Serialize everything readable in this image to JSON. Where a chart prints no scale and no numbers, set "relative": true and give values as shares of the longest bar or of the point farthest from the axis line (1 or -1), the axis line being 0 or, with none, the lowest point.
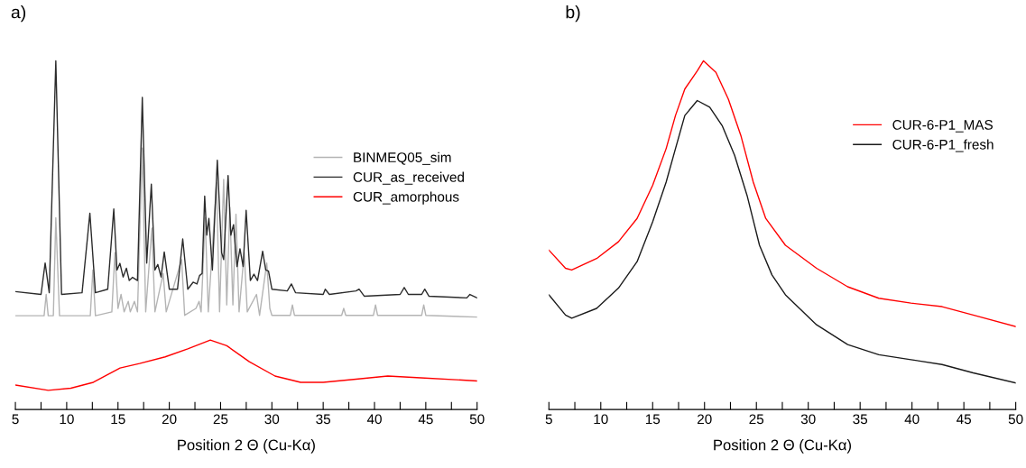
{
  "chart_data": [
    {
      "type": "line",
      "title": "a)",
      "xlabel": "Position 2 Θ (Cu-Kα)",
      "relative": true,
      "tick_labels": "x",
      "legend": "right",
      "grid": false,
      "marker": "none",
      "line_style": "solid",
      "xlim": [
        5,
        50
      ],
      "xticks": [
        5,
        {
          "value": 7.5,
          "label": null
        },
        10,
        {
          "value": 12.5,
          "label": null
        },
        15,
        {
          "value": 17.5,
          "label": null
        },
        20,
        {
          "value": 22.5,
          "label": null
        },
        25,
        {
          "value": 27.5,
          "label": null
        },
        30,
        {
          "value": 32.5,
          "label": null
        },
        35,
        {
          "value": 37.5,
          "label": null
        },
        40,
        {
          "value": 42.5,
          "label": null
        },
        45,
        {
          "value": 47.5,
          "label": null
        },
        50
      ],
      "series": [
        {
          "name": "BINMEQ05_sim",
          "color": "#b4b4b4",
          "x": [
            5,
            7.8,
            8.0,
            8.2,
            8.7,
            8.94,
            9.3,
            12.3,
            12.55,
            12.8,
            14.4,
            14.7,
            15.0,
            15.3,
            15.6,
            16.0,
            16.2,
            16.6,
            16.9,
            17.37,
            17.7,
            18.3,
            18.6,
            19.4,
            19.7,
            21.2,
            21.5,
            22.6,
            22.9,
            23.1,
            23.5,
            23.8,
            24.6,
            24.9,
            25.3,
            25.6,
            25.9,
            26.2,
            26.5,
            26.8,
            27.3,
            27.6,
            28.5,
            28.8,
            29.5,
            29.8,
            30.0,
            31.8,
            32.0,
            32.2,
            36.8,
            37.0,
            37.2,
            39.9,
            40.1,
            40.3,
            44.6,
            44.8,
            45.0,
            50
          ],
          "values": [
            0.269,
            0.269,
            0.33,
            0.269,
            0.269,
            0.55,
            0.269,
            0.269,
            0.4,
            0.269,
            0.28,
            0.45,
            0.29,
            0.33,
            0.28,
            0.31,
            0.28,
            0.31,
            0.28,
            0.75,
            0.28,
            0.52,
            0.28,
            0.39,
            0.28,
            0.43,
            0.27,
            0.29,
            0.31,
            0.28,
            0.55,
            0.28,
            0.65,
            0.28,
            0.66,
            0.3,
            0.58,
            0.3,
            0.56,
            0.28,
            0.45,
            0.28,
            0.33,
            0.27,
            0.42,
            0.29,
            0.27,
            0.27,
            0.3,
            0.27,
            0.27,
            0.29,
            0.27,
            0.27,
            0.3,
            0.27,
            0.27,
            0.3,
            0.27,
            0.265
          ]
        },
        {
          "name": "CUR_as_received",
          "color": "#2b2b2b",
          "x": [
            5,
            7.5,
            7.9,
            8.3,
            8.94,
            9.5,
            11.5,
            12.26,
            12.8,
            14.0,
            14.59,
            14.9,
            15.19,
            15.5,
            15.82,
            16.1,
            16.42,
            16.9,
            17.37,
            17.8,
            18.25,
            18.6,
            18.88,
            19.2,
            19.51,
            20.0,
            20.8,
            21.31,
            21.8,
            22.32,
            22.7,
            22.95,
            23.2,
            23.45,
            23.65,
            23.86,
            24.2,
            24.68,
            25.1,
            25.3,
            25.73,
            26.0,
            26.26,
            26.6,
            26.89,
            27.2,
            27.49,
            27.9,
            28.25,
            28.6,
            29.1,
            29.4,
            29.67,
            30.0,
            31.5,
            31.9,
            32.3,
            35,
            35.2,
            35.6,
            38.2,
            38.5,
            39,
            42.5,
            42.9,
            43.3,
            44.6,
            44.9,
            45.3,
            49,
            49.3,
            50
          ],
          "values": [
            0.338,
            0.33,
            0.42,
            0.335,
            1.0,
            0.33,
            0.335,
            0.563,
            0.335,
            0.345,
            0.575,
            0.4,
            0.419,
            0.38,
            0.405,
            0.37,
            0.379,
            0.37,
            0.895,
            0.42,
            0.646,
            0.4,
            0.416,
            0.38,
            0.452,
            0.345,
            0.345,
            0.489,
            0.345,
            0.365,
            0.36,
            0.384,
            0.39,
            0.612,
            0.5,
            0.548,
            0.4,
            0.715,
            0.45,
            0.43,
            0.671,
            0.5,
            0.53,
            0.41,
            0.461,
            0.41,
            0.571,
            0.37,
            0.388,
            0.37,
            0.454,
            0.4,
            0.397,
            0.345,
            0.34,
            0.36,
            0.335,
            0.33,
            0.345,
            0.33,
            0.34,
            0.345,
            0.325,
            0.33,
            0.35,
            0.33,
            0.33,
            0.345,
            0.325,
            0.32,
            0.33,
            0.32
          ]
        },
        {
          "name": "CUR_amorphous",
          "color": "#ff0000",
          "x": [
            5,
            8.2,
            10.4,
            12.6,
            15.2,
            17.1,
            19.6,
            21.8,
            24.0,
            25.6,
            27.8,
            30.3,
            32.8,
            35.0,
            38.2,
            41.3,
            44.5,
            50
          ],
          "values": [
            0.07,
            0.055,
            0.061,
            0.078,
            0.119,
            0.132,
            0.151,
            0.174,
            0.199,
            0.183,
            0.137,
            0.096,
            0.078,
            0.078,
            0.087,
            0.096,
            0.091,
            0.082
          ]
        }
      ]
    },
    {
      "type": "line",
      "title": "b)",
      "xlabel": "Position 2 Θ (Cu-Kα)",
      "relative": true,
      "tick_labels": "x",
      "legend": "top right",
      "grid": false,
      "marker": "none",
      "line_style": "solid",
      "xlim": [
        5,
        50
      ],
      "xticks": [
        5,
        {
          "value": 7.5,
          "label": null
        },
        10,
        {
          "value": 12.5,
          "label": null
        },
        15,
        {
          "value": 17.5,
          "label": null
        },
        20,
        {
          "value": 22.5,
          "label": null
        },
        25,
        {
          "value": 27.5,
          "label": null
        },
        30,
        {
          "value": 32.5,
          "label": null
        },
        35,
        {
          "value": 37.5,
          "label": null
        },
        40,
        {
          "value": 42.5,
          "label": null
        },
        45,
        {
          "value": 47.5,
          "label": null
        },
        50
      ],
      "series": [
        {
          "name": "CUR-6-P1_MAS",
          "color": "#ff0000",
          "x": [
            5,
            6.6,
            7.2,
            9.6,
            11.7,
            13.5,
            15.0,
            16.3,
            17.2,
            18.1,
            19.3,
            19.9,
            21.1,
            22.3,
            23.5,
            24.7,
            25.9,
            27.8,
            30.8,
            33.8,
            36.8,
            39.9,
            42.9,
            45.9,
            50
          ],
          "values": [
            0.457,
            0.405,
            0.4,
            0.433,
            0.481,
            0.548,
            0.643,
            0.748,
            0.843,
            0.919,
            0.971,
            1.0,
            0.967,
            0.89,
            0.786,
            0.652,
            0.548,
            0.471,
            0.405,
            0.352,
            0.319,
            0.305,
            0.295,
            0.271,
            0.238
          ]
        },
        {
          "name": "CUR-6-P1_fresh",
          "color": "#1a1a1a",
          "x": [
            5,
            6.6,
            7.2,
            9.6,
            11.7,
            13.5,
            15.0,
            16.3,
            17.2,
            18.1,
            19.3,
            20.5,
            21.7,
            22.9,
            24.1,
            25.3,
            26.5,
            27.8,
            30.8,
            33.8,
            36.8,
            39.9,
            42.9,
            45.9,
            50
          ],
          "values": [
            0.329,
            0.271,
            0.262,
            0.29,
            0.348,
            0.424,
            0.538,
            0.652,
            0.748,
            0.843,
            0.886,
            0.867,
            0.814,
            0.729,
            0.614,
            0.471,
            0.386,
            0.329,
            0.243,
            0.186,
            0.157,
            0.143,
            0.129,
            0.105,
            0.076
          ]
        }
      ]
    }
  ]
}
